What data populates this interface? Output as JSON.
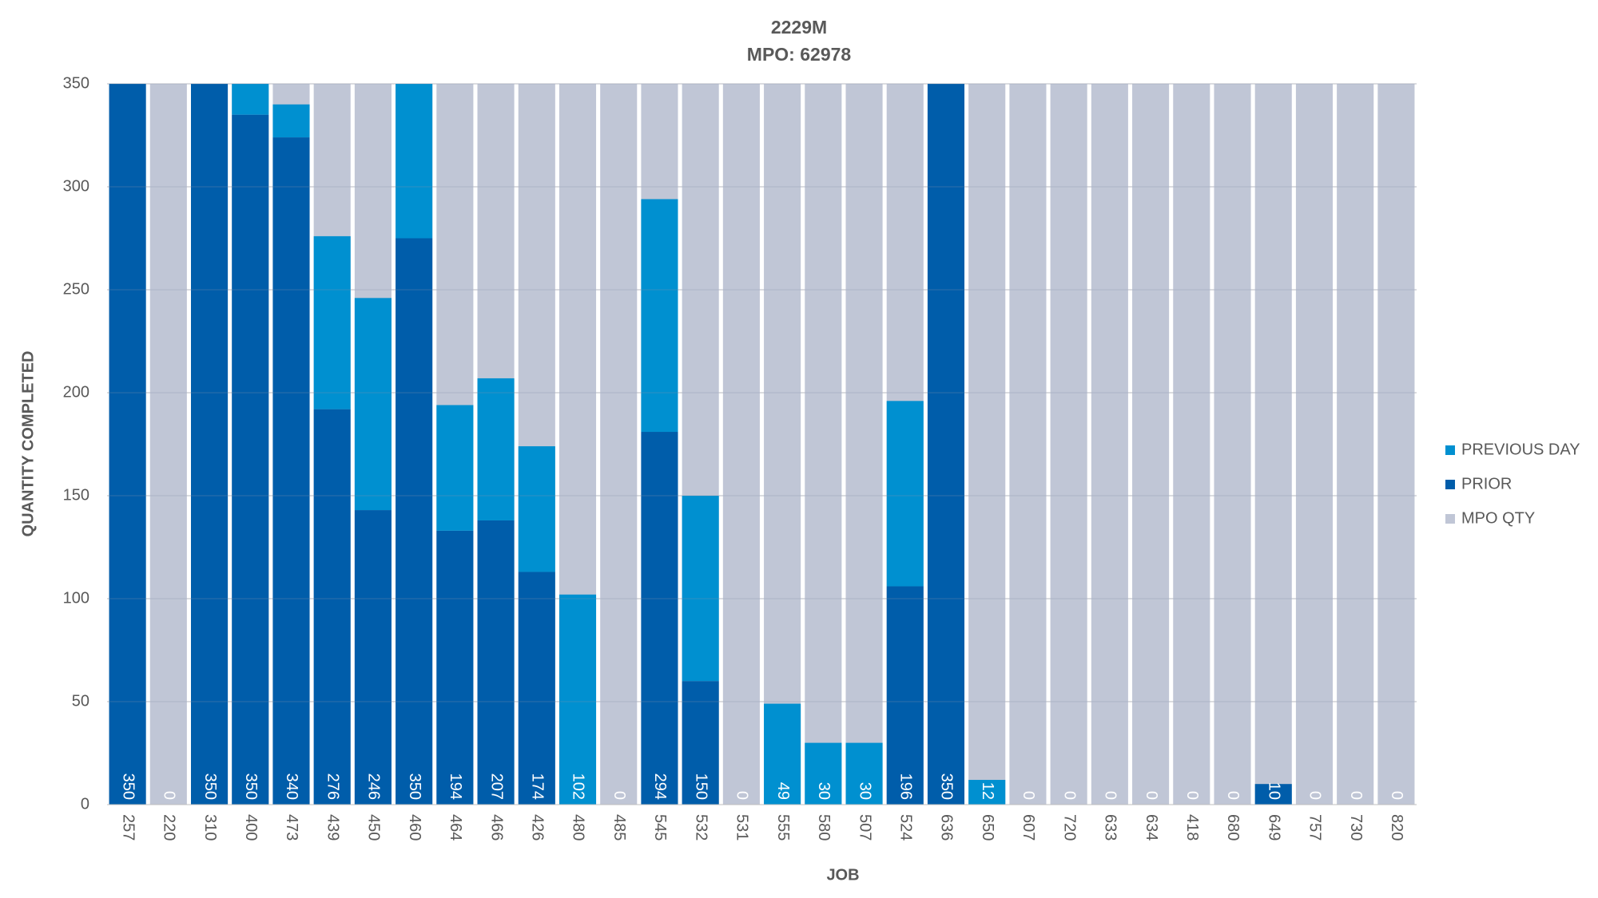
{
  "chart_data": {
    "type": "bar",
    "title": "2229M",
    "subtitle": "MPO: 62978",
    "x_label": "JOB",
    "y_label": "QUANTITY COMPLETED",
    "categories": [
      "257",
      "220",
      "310",
      "400",
      "473",
      "439",
      "450",
      "460",
      "464",
      "466",
      "426",
      "480",
      "485",
      "545",
      "532",
      "531",
      "555",
      "580",
      "507",
      "524",
      "636",
      "650",
      "607",
      "720",
      "633",
      "634",
      "418",
      "680",
      "649",
      "757",
      "730",
      "820"
    ],
    "series": [
      {
        "name": "PREVIOUS DAY",
        "color": "#0090d0",
        "values": [
          0,
          0,
          0,
          15,
          16,
          84,
          103,
          75,
          61,
          69,
          61,
          102,
          0,
          113,
          90,
          0,
          49,
          30,
          30,
          90,
          0,
          12,
          0,
          0,
          0,
          0,
          0,
          0,
          0,
          0,
          0,
          0
        ]
      },
      {
        "name": "PRIOR",
        "color": "#005daa",
        "values": [
          350,
          0,
          350,
          335,
          324,
          192,
          143,
          275,
          133,
          138,
          113,
          0,
          0,
          181,
          60,
          0,
          0,
          0,
          0,
          106,
          350,
          0,
          0,
          0,
          0,
          0,
          0,
          0,
          10,
          0,
          0,
          0
        ]
      },
      {
        "name": "MPO QTY",
        "color": "#c0c6d6",
        "values": [
          350,
          350,
          350,
          350,
          350,
          350,
          350,
          350,
          350,
          350,
          350,
          350,
          350,
          350,
          350,
          350,
          350,
          350,
          350,
          350,
          350,
          350,
          350,
          350,
          350,
          350,
          350,
          350,
          350,
          350,
          350,
          350
        ]
      }
    ],
    "totals": [
      350,
      0,
      350,
      350,
      340,
      276,
      246,
      350,
      194,
      207,
      174,
      102,
      0,
      294,
      150,
      0,
      49,
      30,
      30,
      196,
      350,
      12,
      0,
      0,
      0,
      0,
      0,
      0,
      10,
      0,
      0,
      0
    ],
    "ylim": [
      0,
      350
    ],
    "yticks": [
      0,
      50,
      100,
      150,
      200,
      250,
      300,
      350
    ],
    "grid": true
  }
}
